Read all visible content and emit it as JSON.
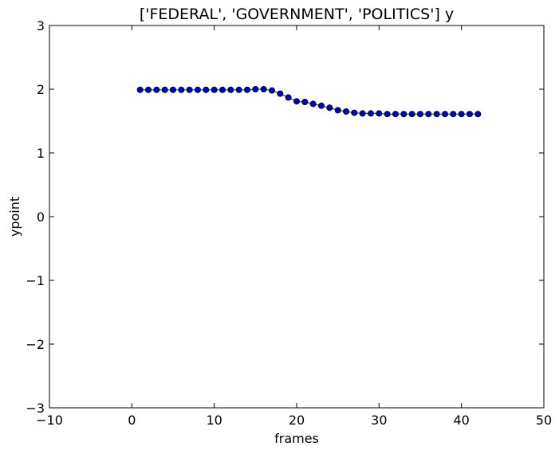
{
  "chart_data": {
    "type": "line",
    "title": "['FEDERAL', 'GOVERNMENT', 'POLITICS'] y",
    "xlabel": "frames",
    "ylabel": "ypoint",
    "xlim": [
      -10,
      50
    ],
    "ylim": [
      -3,
      3
    ],
    "xticks": [
      -10,
      0,
      10,
      20,
      30,
      40,
      50
    ],
    "yticks": [
      3,
      2,
      1,
      0,
      -1,
      -2,
      -3
    ],
    "xtick_labels": [
      "−10",
      "0",
      "10",
      "20",
      "30",
      "40",
      "50"
    ],
    "ytick_labels": [
      "3",
      "2",
      "1",
      "0",
      "−1",
      "−2",
      "−3"
    ],
    "grid": false,
    "line_color": "#008000",
    "marker_color": "#0000cc",
    "series": [
      {
        "x": [
          1,
          2,
          3,
          4,
          5,
          6,
          7,
          8,
          9,
          10,
          11,
          12,
          13,
          14,
          15,
          16,
          17,
          18,
          19,
          20,
          21,
          22,
          23,
          24,
          25,
          26,
          27,
          28,
          29,
          30,
          31,
          32,
          33,
          34,
          35,
          36,
          37,
          38,
          39,
          40,
          41,
          42
        ],
        "values": [
          1.99,
          1.99,
          1.99,
          1.99,
          1.99,
          1.99,
          1.99,
          1.99,
          1.99,
          1.99,
          1.99,
          1.99,
          1.99,
          1.99,
          2.0,
          2.0,
          1.98,
          1.93,
          1.87,
          1.81,
          1.8,
          1.77,
          1.74,
          1.71,
          1.67,
          1.65,
          1.63,
          1.62,
          1.62,
          1.62,
          1.61,
          1.61,
          1.61,
          1.61,
          1.61,
          1.61,
          1.61,
          1.61,
          1.61,
          1.61,
          1.61,
          1.61
        ]
      }
    ]
  }
}
